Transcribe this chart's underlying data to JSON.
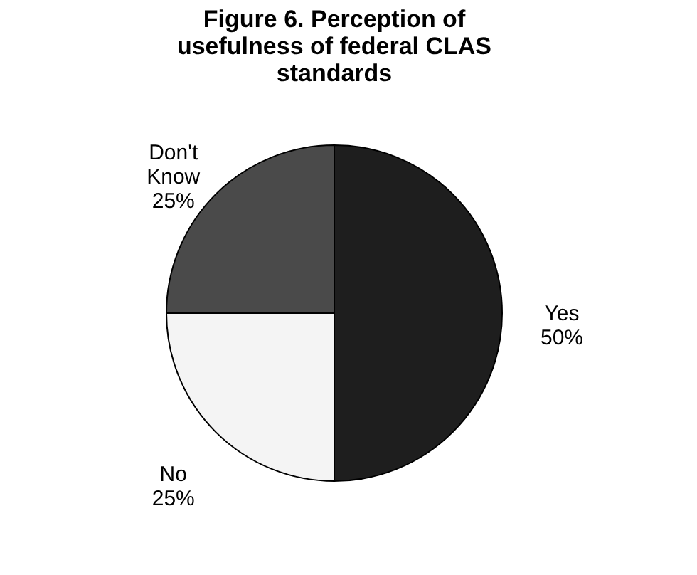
{
  "chart_data": {
    "type": "pie",
    "title": "Figure 6. Perception of usefulness of federal CLAS standards",
    "categories": [
      "Yes",
      "No",
      "Don't Know"
    ],
    "values": [
      50,
      25,
      25
    ],
    "colors": [
      "#1e1e1e",
      "#f4f4f4",
      "#4a4a4a"
    ],
    "value_labels": [
      "50%",
      "25%",
      "25%"
    ],
    "legend": false
  }
}
